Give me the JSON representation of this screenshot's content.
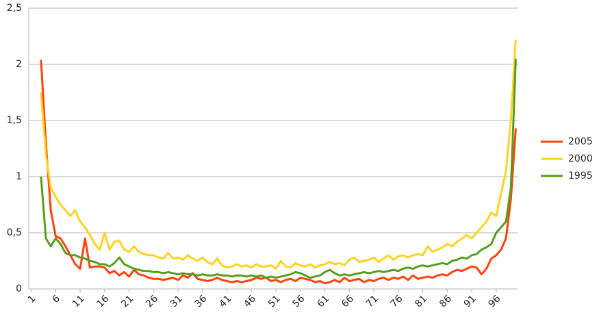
{
  "chart_data": {
    "type": "line",
    "categories": [
      "1",
      null,
      null,
      null,
      null,
      "6",
      null,
      null,
      null,
      null,
      "11",
      null,
      null,
      null,
      null,
      "16",
      null,
      null,
      null,
      null,
      "21",
      null,
      null,
      null,
      null,
      "26",
      null,
      null,
      null,
      null,
      "31",
      null,
      null,
      null,
      null,
      "36",
      null,
      null,
      null,
      null,
      "41",
      null,
      null,
      null,
      null,
      "46",
      null,
      null,
      null,
      null,
      "51",
      null,
      null,
      null,
      null,
      "56",
      null,
      null,
      null,
      null,
      "61",
      null,
      null,
      null,
      null,
      "66",
      null,
      null,
      null,
      null,
      "71",
      null,
      null,
      null,
      null,
      "76",
      null,
      null,
      null,
      null,
      "81",
      null,
      null,
      null,
      null,
      "86",
      null,
      null,
      null,
      null,
      "91",
      null,
      null,
      null,
      null,
      "96",
      null,
      null,
      null,
      null
    ],
    "series": [
      {
        "name": "2005",
        "color": "#ff420e",
        "values": [
          null,
          null,
          2.04,
          1.3,
          0.7,
          0.47,
          0.45,
          0.38,
          0.3,
          0.22,
          0.18,
          0.45,
          0.19,
          0.2,
          0.2,
          0.19,
          0.14,
          0.16,
          0.12,
          0.15,
          0.11,
          0.17,
          0.13,
          0.12,
          0.1,
          0.09,
          0.09,
          0.08,
          0.09,
          0.1,
          0.08,
          0.12,
          0.1,
          0.14,
          0.09,
          0.08,
          0.07,
          0.08,
          0.1,
          0.08,
          0.07,
          0.06,
          0.07,
          0.06,
          0.07,
          0.08,
          0.1,
          0.09,
          0.1,
          0.07,
          0.08,
          0.06,
          0.08,
          0.09,
          0.07,
          0.1,
          0.09,
          0.08,
          0.06,
          0.07,
          0.05,
          0.06,
          0.08,
          0.06,
          0.1,
          0.07,
          0.08,
          0.09,
          0.06,
          0.08,
          0.07,
          0.09,
          0.1,
          0.08,
          0.1,
          0.09,
          0.11,
          0.08,
          0.12,
          0.09,
          0.1,
          0.11,
          0.1,
          0.12,
          0.13,
          0.12,
          0.15,
          0.17,
          0.16,
          0.18,
          0.2,
          0.19,
          0.13,
          0.18,
          0.27,
          0.3,
          0.35,
          0.45,
          0.8,
          1.43
        ]
      },
      {
        "name": "2000",
        "color": "#ffd320",
        "values": [
          null,
          null,
          1.75,
          1.2,
          0.9,
          0.82,
          0.75,
          0.7,
          0.65,
          0.7,
          0.6,
          0.55,
          0.48,
          0.4,
          0.35,
          0.5,
          0.35,
          0.42,
          0.43,
          0.35,
          0.33,
          0.38,
          0.33,
          0.31,
          0.3,
          0.3,
          0.28,
          0.27,
          0.32,
          0.27,
          0.28,
          0.26,
          0.3,
          0.27,
          0.25,
          0.28,
          0.24,
          0.22,
          0.27,
          0.21,
          0.19,
          0.2,
          0.22,
          0.2,
          0.21,
          0.19,
          0.22,
          0.2,
          0.2,
          0.21,
          0.18,
          0.25,
          0.2,
          0.19,
          0.23,
          0.21,
          0.2,
          0.22,
          0.19,
          0.21,
          0.22,
          0.24,
          0.22,
          0.23,
          0.21,
          0.26,
          0.28,
          0.24,
          0.25,
          0.26,
          0.28,
          0.24,
          0.27,
          0.3,
          0.26,
          0.29,
          0.3,
          0.28,
          0.3,
          0.31,
          0.3,
          0.38,
          0.33,
          0.35,
          0.37,
          0.4,
          0.38,
          0.42,
          0.45,
          0.48,
          0.45,
          0.5,
          0.55,
          0.6,
          0.68,
          0.65,
          0.85,
          1.05,
          1.5,
          2.22
        ]
      },
      {
        "name": "1995",
        "color": "#579d1c",
        "values": [
          null,
          null,
          1.0,
          0.45,
          0.38,
          0.45,
          0.4,
          0.32,
          0.3,
          0.3,
          0.28,
          0.27,
          0.25,
          0.24,
          0.22,
          0.22,
          0.2,
          0.23,
          0.28,
          0.22,
          0.2,
          0.18,
          0.17,
          0.16,
          0.16,
          0.15,
          0.15,
          0.14,
          0.15,
          0.14,
          0.13,
          0.14,
          0.13,
          0.13,
          0.12,
          0.13,
          0.12,
          0.12,
          0.13,
          0.12,
          0.12,
          0.11,
          0.12,
          0.12,
          0.11,
          0.12,
          0.11,
          0.12,
          0.1,
          0.11,
          0.1,
          0.11,
          0.12,
          0.13,
          0.15,
          0.14,
          0.12,
          0.1,
          0.11,
          0.12,
          0.15,
          0.17,
          0.14,
          0.12,
          0.13,
          0.12,
          0.13,
          0.14,
          0.15,
          0.14,
          0.15,
          0.16,
          0.15,
          0.16,
          0.17,
          0.16,
          0.18,
          0.19,
          0.18,
          0.2,
          0.21,
          0.2,
          0.21,
          0.22,
          0.23,
          0.22,
          0.25,
          0.26,
          0.28,
          0.27,
          0.3,
          0.31,
          0.35,
          0.37,
          0.4,
          0.5,
          0.55,
          0.6,
          0.9,
          2.05
        ]
      }
    ],
    "ylim": [
      0,
      2.5
    ],
    "yticks": [
      0,
      {
        "value": 0.5,
        "label": "0,5"
      },
      1,
      {
        "value": 1.5,
        "label": "1,5"
      },
      2,
      {
        "value": 2.5,
        "label": "2,5"
      }
    ],
    "grid": true,
    "legend": "right"
  }
}
